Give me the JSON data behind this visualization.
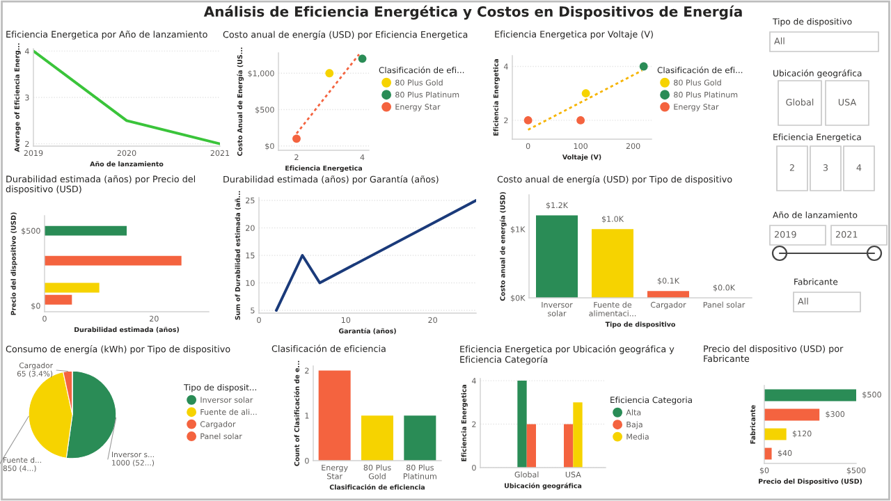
{
  "chart_data": [
    {
      "type": "line",
      "title": "Eficiencia Energetica por Año de lanzamiento",
      "xlabel": "Año de lanzamiento",
      "ylabel": "Average of Eficiencia Energ...",
      "x": [
        2019,
        2020,
        2021
      ],
      "values": [
        4,
        2.5,
        2
      ],
      "color": "#3ac43a",
      "xlim": [
        2019,
        2021
      ],
      "xticks": [
        2019,
        2020,
        2021
      ],
      "ylim": [
        1.95,
        4.05
      ],
      "yticks": [
        2,
        3,
        4
      ],
      "grid": "y"
    },
    {
      "type": "scatter",
      "title": "Costo anual de energía (USD) por Eficiencia Energetica",
      "xlabel": "Eficiencia Energetica",
      "ylabel": "Costo Anual de Energía (US...",
      "legend": "right",
      "legend_title": "Clasificación de efi...",
      "series": [
        {
          "name": "80 Plus Gold",
          "color": "#f6d300",
          "x": [
            3
          ],
          "values": [
            1000
          ]
        },
        {
          "name": "80 Plus Platinum",
          "color": "#2a8c56",
          "x": [
            4
          ],
          "values": [
            1200
          ]
        },
        {
          "name": "Energy Star",
          "color": "#f4633f",
          "x": [
            2
          ],
          "values": [
            100
          ]
        },
        {
          "type": "line",
          "color": "#f4633f",
          "line_style": "dotted",
          "x": [
            2,
            3.9
          ],
          "values": [
            170,
            1260
          ]
        }
      ],
      "xlim": [
        1.45,
        4.2
      ],
      "xticks": [
        2,
        4
      ],
      "ylim": [
        -60,
        1280
      ],
      "yticks": [
        {
          "value": 0,
          "label": "$0"
        },
        {
          "value": 500,
          "label": "$500"
        },
        {
          "value": 1000,
          "label": "$1,000"
        }
      ],
      "grid": "y"
    },
    {
      "type": "scatter",
      "title": "Eficiencia Energetica por Voltaje (V)",
      "xlabel": "Voltaje (V)",
      "ylabel": "Eficiencia Energetica",
      "legend": "right",
      "legend_title": "Clasificación de efi...",
      "series": [
        {
          "name": "80 Plus Gold",
          "color": "#f6d300",
          "x": [
            110
          ],
          "values": [
            3
          ]
        },
        {
          "name": "80 Plus Platinum",
          "color": "#2a8c56",
          "x": [
            220
          ],
          "values": [
            4
          ]
        },
        {
          "name": "Energy Star",
          "color": "#f4633f",
          "x": [
            0,
            100
          ],
          "values": [
            2,
            2
          ]
        },
        {
          "type": "line",
          "color": "#f6b400",
          "line_style": "dotted",
          "x": [
            0,
            217
          ],
          "values": [
            1.65,
            3.85
          ]
        }
      ],
      "xlim": [
        -30,
        235
      ],
      "xticks": [
        0,
        100,
        200
      ],
      "ylim": [
        1.3,
        4.4
      ],
      "yticks": [
        2,
        4
      ],
      "grid": "y"
    },
    {
      "type": "bar",
      "orientation": "horizontal",
      "title": "Durabilidad estimada (años) por Precio del dispositivo (USD)",
      "xlabel": "Durabilidad estimada (años)",
      "ylabel": "Precio del dispositivo (USD)",
      "x": [
        500,
        300,
        120,
        40
      ],
      "values": [
        15,
        25,
        10,
        5
      ],
      "colors": [
        "#2a8c56",
        "#f4633f",
        "#f6d300",
        "#f4633f"
      ],
      "xlim": [
        0,
        30
      ],
      "xticks": [
        0,
        20
      ],
      "ylim": [
        -40,
        600
      ],
      "yticks": [
        {
          "value": 0,
          "label": "$0"
        },
        {
          "value": 500,
          "label": "$500"
        }
      ]
    },
    {
      "type": "line",
      "title": "Durabilidad estimada (años) por Garantía (años)",
      "xlabel": "Garantía (años)",
      "ylabel": "Sum of Durabilidad estimada (añ...",
      "x": [
        2,
        5,
        7,
        25
      ],
      "values": [
        5,
        15,
        10,
        25
      ],
      "color": "#1a3a7a",
      "xlim": [
        0,
        25
      ],
      "xticks": [
        0,
        10,
        20
      ],
      "ylim": [
        4.5,
        25.5
      ],
      "yticks": [
        5,
        10,
        15,
        20,
        25
      ],
      "grid": "y"
    },
    {
      "type": "bar",
      "title": "Costo anual de energía (USD) por Tipo de dispositivo",
      "xlabel": "Tipo de dispositivo",
      "ylabel": "Costo anual de energía (USD)",
      "categories": [
        "Inversor solar",
        "Fuente de alimentaci...",
        "Cargador",
        "Panel solar"
      ],
      "values": [
        1200,
        1000,
        100,
        0
      ],
      "colors": [
        "#2a8c56",
        "#f6d300",
        "#f4633f",
        "#f4633f"
      ],
      "value_labels": [
        "$1.2K",
        "$1.0K",
        "$0.1K",
        "$0.0K"
      ],
      "ylim": [
        0,
        1500
      ],
      "yticks": [
        {
          "value": 0,
          "label": "$0K"
        },
        {
          "value": 1000,
          "label": "$1K"
        }
      ]
    },
    {
      "type": "pie",
      "title": "Consumo de energía (kWh) por Tipo de dispositivo",
      "legend": "right",
      "legend_title": "Tipo de disposit...",
      "categories": [
        "Inversor solar",
        "Fuente de ali...",
        "Cargador",
        "Panel solar"
      ],
      "values": [
        1000,
        850,
        65,
        0
      ],
      "colors": [
        "#2a8c56",
        "#f6d300",
        "#f4633f",
        "#f4633f"
      ],
      "value_labels": [
        "Inversor s...\n1000 (52...)",
        "Fuente d...\n850 (4...)",
        "Cargador\n65 (3.4%)",
        null
      ]
    },
    {
      "type": "bar",
      "title": "Clasificación de eficiencia",
      "xlabel": "Clasificación de eficiencia",
      "ylabel": "Count of Clasificación de e...",
      "categories": [
        "Energy Star",
        "80 Plus Gold",
        "80 Plus Platinum"
      ],
      "values": [
        2,
        1,
        1
      ],
      "colors": [
        "#f4633f",
        "#f6d300",
        "#2a8c56"
      ],
      "ylim": [
        0,
        2.1
      ],
      "yticks": [
        0,
        1,
        2
      ]
    },
    {
      "type": "bar",
      "title": "Eficiencia Energetica por Ubicación geográfica y Eficiencia Categoría",
      "xlabel": "Ubicación geográfica",
      "ylabel": "Eficiencia Energetica",
      "legend": "right",
      "legend_title": "Eficiencia Categoria",
      "categories": [
        "Global",
        "USA"
      ],
      "series": [
        {
          "name": "Alta",
          "color": "#2a8c56",
          "values": [
            4,
            null
          ]
        },
        {
          "name": "Baja",
          "color": "#f4633f",
          "values": [
            2,
            2
          ]
        },
        {
          "name": "Media",
          "color": "#f6d300",
          "values": [
            null,
            3
          ]
        }
      ],
      "ylim": [
        0,
        4.1
      ],
      "yticks": [
        0,
        2,
        4
      ],
      "grid": "y"
    },
    {
      "type": "bar",
      "orientation": "horizontal",
      "title": "Precio del dispositivo (USD) por Fabricante",
      "xlabel": "Precio del Dispositivo (USD)",
      "ylabel": "Fabricante",
      "categories": [
        null,
        null,
        null,
        null
      ],
      "values": [
        500,
        300,
        120,
        40
      ],
      "colors": [
        "#2a8c56",
        "#f4633f",
        "#f6d300",
        "#f4633f"
      ],
      "value_labels": [
        "$500",
        "$300",
        "$120",
        "$40"
      ],
      "xlim": [
        0,
        500
      ],
      "xticks": [
        {
          "value": 0,
          "label": "$0"
        },
        {
          "value": 500,
          "label": "$500"
        }
      ]
    },
    {
      "type": "other",
      "title": "Análisis de Eficiencia Energética y Costos en Dispositivos de Energía",
      "annotations": [
        "Tipo de dispositivo",
        "All",
        "Ubicación geográfica",
        "Global",
        "USA",
        "Eficiencia Energetica",
        "2",
        "3",
        "4",
        "Año de lanzamiento",
        "2019",
        "2021",
        "Fabricante",
        "All"
      ]
    }
  ]
}
